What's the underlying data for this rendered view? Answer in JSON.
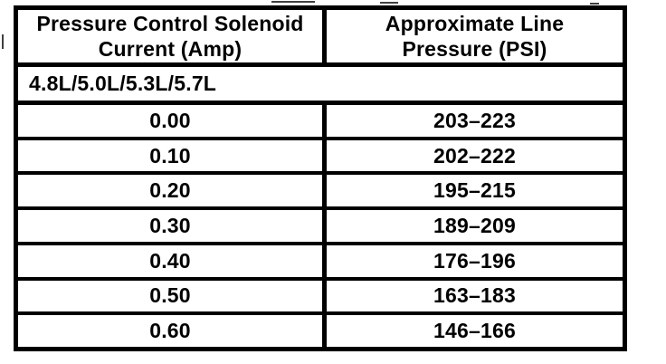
{
  "colors": {
    "ink": "#000000",
    "paper": "#ffffff"
  },
  "table": {
    "header": {
      "col1": {
        "line1": "Pressure Control Solenoid",
        "line2": "Current (Amp)"
      },
      "col2": {
        "line1": "Approximate Line",
        "line2": "Pressure (PSI)"
      }
    },
    "group_label": "4.8L/5.0L/5.3L/5.7L",
    "rows": [
      {
        "current": "0.00",
        "pressure": "203–223"
      },
      {
        "current": "0.10",
        "pressure": "202–222"
      },
      {
        "current": "0.20",
        "pressure": "195–215"
      },
      {
        "current": "0.30",
        "pressure": "189–209"
      },
      {
        "current": "0.40",
        "pressure": "176–196"
      },
      {
        "current": "0.50",
        "pressure": "163–183"
      },
      {
        "current": "0.60",
        "pressure": "146–166"
      }
    ]
  }
}
